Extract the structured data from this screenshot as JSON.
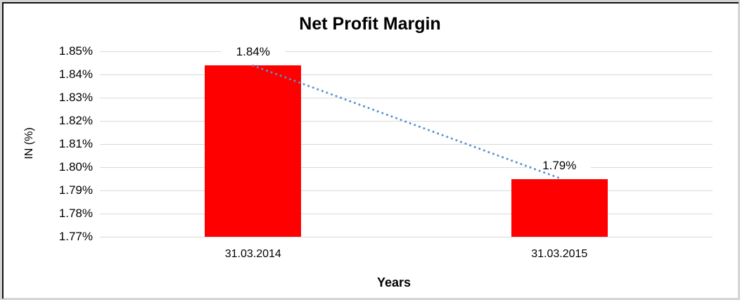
{
  "chart_data": {
    "type": "bar",
    "title": "Net Profit Margin",
    "xlabel": "Years",
    "ylabel": "IN (%)",
    "categories": [
      "31.03.2014",
      "31.03.2015"
    ],
    "values": [
      1.844,
      1.795
    ],
    "data_labels": [
      "1.84%",
      "1.79%"
    ],
    "y_ticks": [
      "1.85%",
      "1.84%",
      "1.83%",
      "1.82%",
      "1.81%",
      "1.80%",
      "1.79%",
      "1.78%",
      "1.77%"
    ],
    "ylim": [
      1.77,
      1.85
    ],
    "grid": true,
    "legend": false,
    "trendline": {
      "style": "dotted",
      "shape": "linear",
      "connects": "bar-tops",
      "color": "#5a91d2"
    },
    "colors": {
      "bar": "#ff0000",
      "gridline": "#d9d9d9",
      "text": "#000000",
      "frame_outer_border": "#d5d5d5",
      "frame_inner_border": "#111111",
      "background": "#ffffff"
    }
  }
}
